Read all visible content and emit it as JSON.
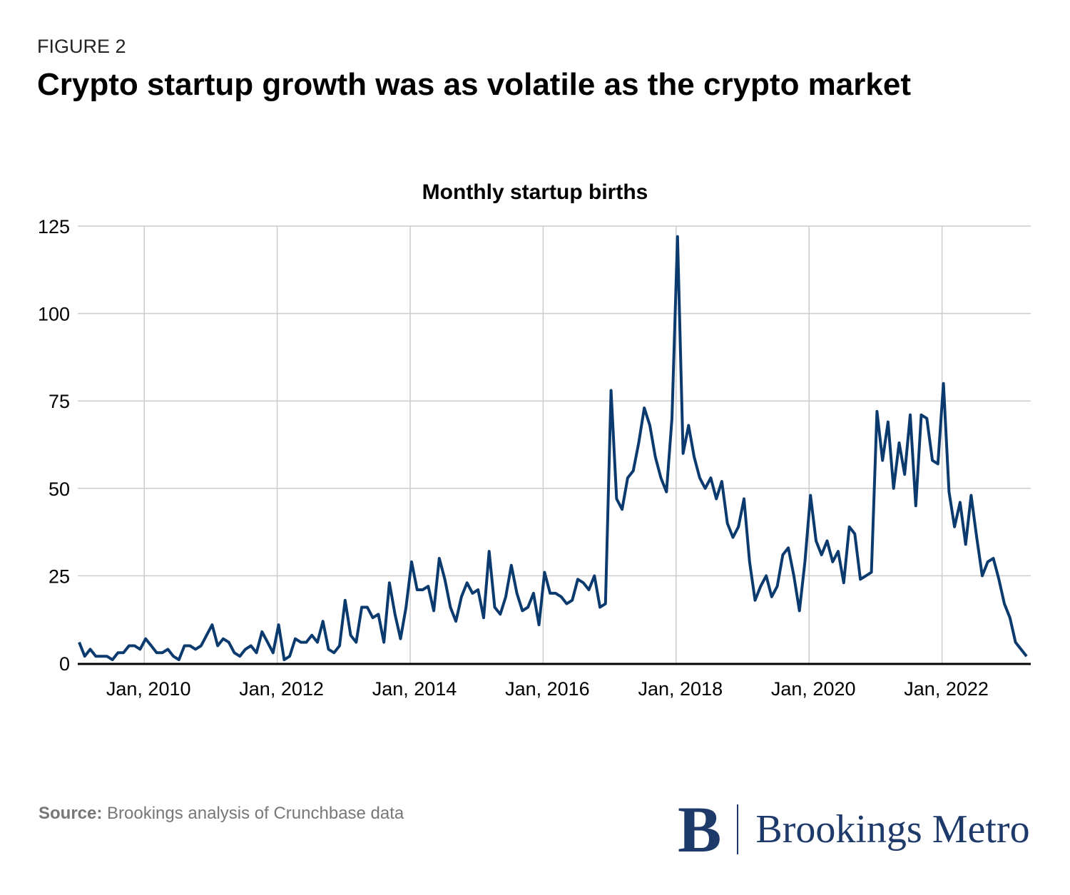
{
  "header": {
    "figure_label": "FIGURE 2",
    "title": "Crypto startup growth was as volatile as the crypto market"
  },
  "footer": {
    "source_label": "Source:",
    "source_text": " Brookings analysis of Crunchbase data",
    "logo_letter": "B",
    "logo_name": "Brookings Metro"
  },
  "colors": {
    "line": "#0b3a6e",
    "grid": "#cccccc",
    "axis": "#000000"
  },
  "chart_data": {
    "type": "line",
    "title": "Monthly startup births",
    "xlabel": "",
    "ylabel": "",
    "ylim": [
      0,
      125
    ],
    "yticks": [
      0,
      25,
      50,
      75,
      100,
      125
    ],
    "xticks": [
      {
        "year": 2010,
        "label": "Jan, 2010"
      },
      {
        "year": 2012,
        "label": "Jan, 2012"
      },
      {
        "year": 2014,
        "label": "Jan, 2014"
      },
      {
        "year": 2016,
        "label": "Jan, 2016"
      },
      {
        "year": 2018,
        "label": "Jan, 2018"
      },
      {
        "year": 2020,
        "label": "Jan, 2020"
      },
      {
        "year": 2022,
        "label": "Jan, 2022"
      }
    ],
    "start": "2009-01",
    "frequency": "monthly",
    "series": [
      {
        "name": "Monthly startup births",
        "values": [
          6,
          2,
          4,
          2,
          2,
          2,
          1,
          3,
          3,
          5,
          5,
          4,
          7,
          5,
          3,
          3,
          4,
          2,
          1,
          5,
          5,
          4,
          5,
          8,
          11,
          5,
          7,
          6,
          3,
          2,
          4,
          5,
          3,
          9,
          6,
          3,
          11,
          1,
          2,
          7,
          6,
          6,
          8,
          6,
          12,
          4,
          3,
          5,
          18,
          8,
          6,
          16,
          16,
          13,
          14,
          6,
          23,
          14,
          7,
          16,
          29,
          21,
          21,
          22,
          15,
          30,
          24,
          16,
          12,
          19,
          23,
          20,
          21,
          13,
          32,
          16,
          14,
          19,
          28,
          20,
          15,
          16,
          20,
          11,
          26,
          20,
          20,
          19,
          17,
          18,
          24,
          23,
          21,
          25,
          16,
          17,
          78,
          47,
          44,
          53,
          55,
          63,
          73,
          68,
          59,
          53,
          49,
          70,
          122,
          60,
          68,
          59,
          53,
          50,
          53,
          47,
          52,
          40,
          36,
          39,
          47,
          29,
          18,
          22,
          25,
          19,
          22,
          31,
          33,
          25,
          15,
          29,
          48,
          35,
          31,
          35,
          29,
          32,
          23,
          39,
          37,
          24,
          25,
          26,
          72,
          58,
          69,
          50,
          63,
          54,
          71,
          45,
          71,
          70,
          58,
          57,
          80,
          49,
          39,
          46,
          34,
          48,
          36,
          25,
          29,
          30,
          24,
          17,
          13,
          6,
          4,
          2
        ]
      }
    ]
  }
}
